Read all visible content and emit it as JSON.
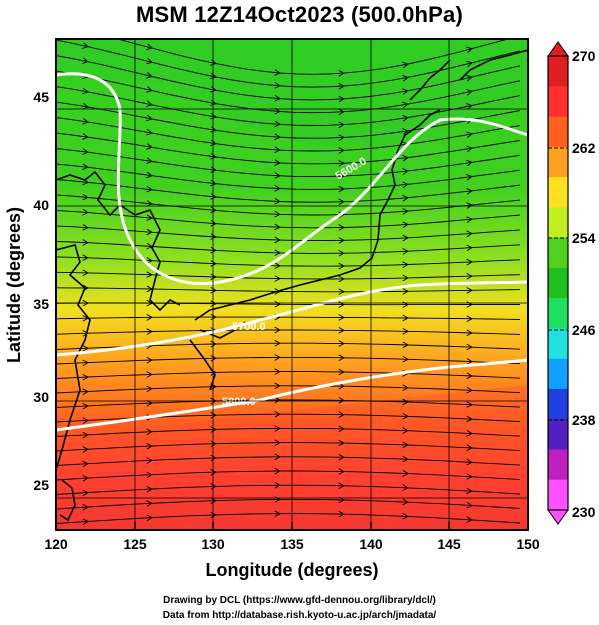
{
  "title": "MSM 12Z14Oct2023 (500.0hPa)",
  "axes": {
    "xlabel": "Longitude (degrees)",
    "ylabel": "Latitude  (degrees)",
    "xticks": [
      "120",
      "125",
      "130",
      "135",
      "140",
      "145",
      "150"
    ],
    "yticks": [
      "25",
      "30",
      "35",
      "40",
      "45"
    ]
  },
  "colorbar": {
    "ticks": [
      "270",
      "262",
      "254",
      "246",
      "238",
      "230"
    ],
    "min": 230,
    "max": 270,
    "colors": [
      "#ff50ff",
      "#c020c0",
      "#5020c0",
      "#2040e0",
      "#10a0ff",
      "#20e0e0",
      "#20e060",
      "#20c020",
      "#50d020",
      "#c0f020",
      "#ffe020",
      "#ffa020",
      "#ff6020",
      "#ff3030",
      "#e02020"
    ]
  },
  "contours": [
    {
      "label": "5800.0"
    },
    {
      "label": "5700.0"
    },
    {
      "label": "5600.0"
    }
  ],
  "footer": {
    "line1": "Drawing by DCL (https://www.gfd-dennou.org/library/dcl/)",
    "line2": "Data from http://database.rish.kyoto-u.ac.jp/arch/jmadata/"
  }
}
